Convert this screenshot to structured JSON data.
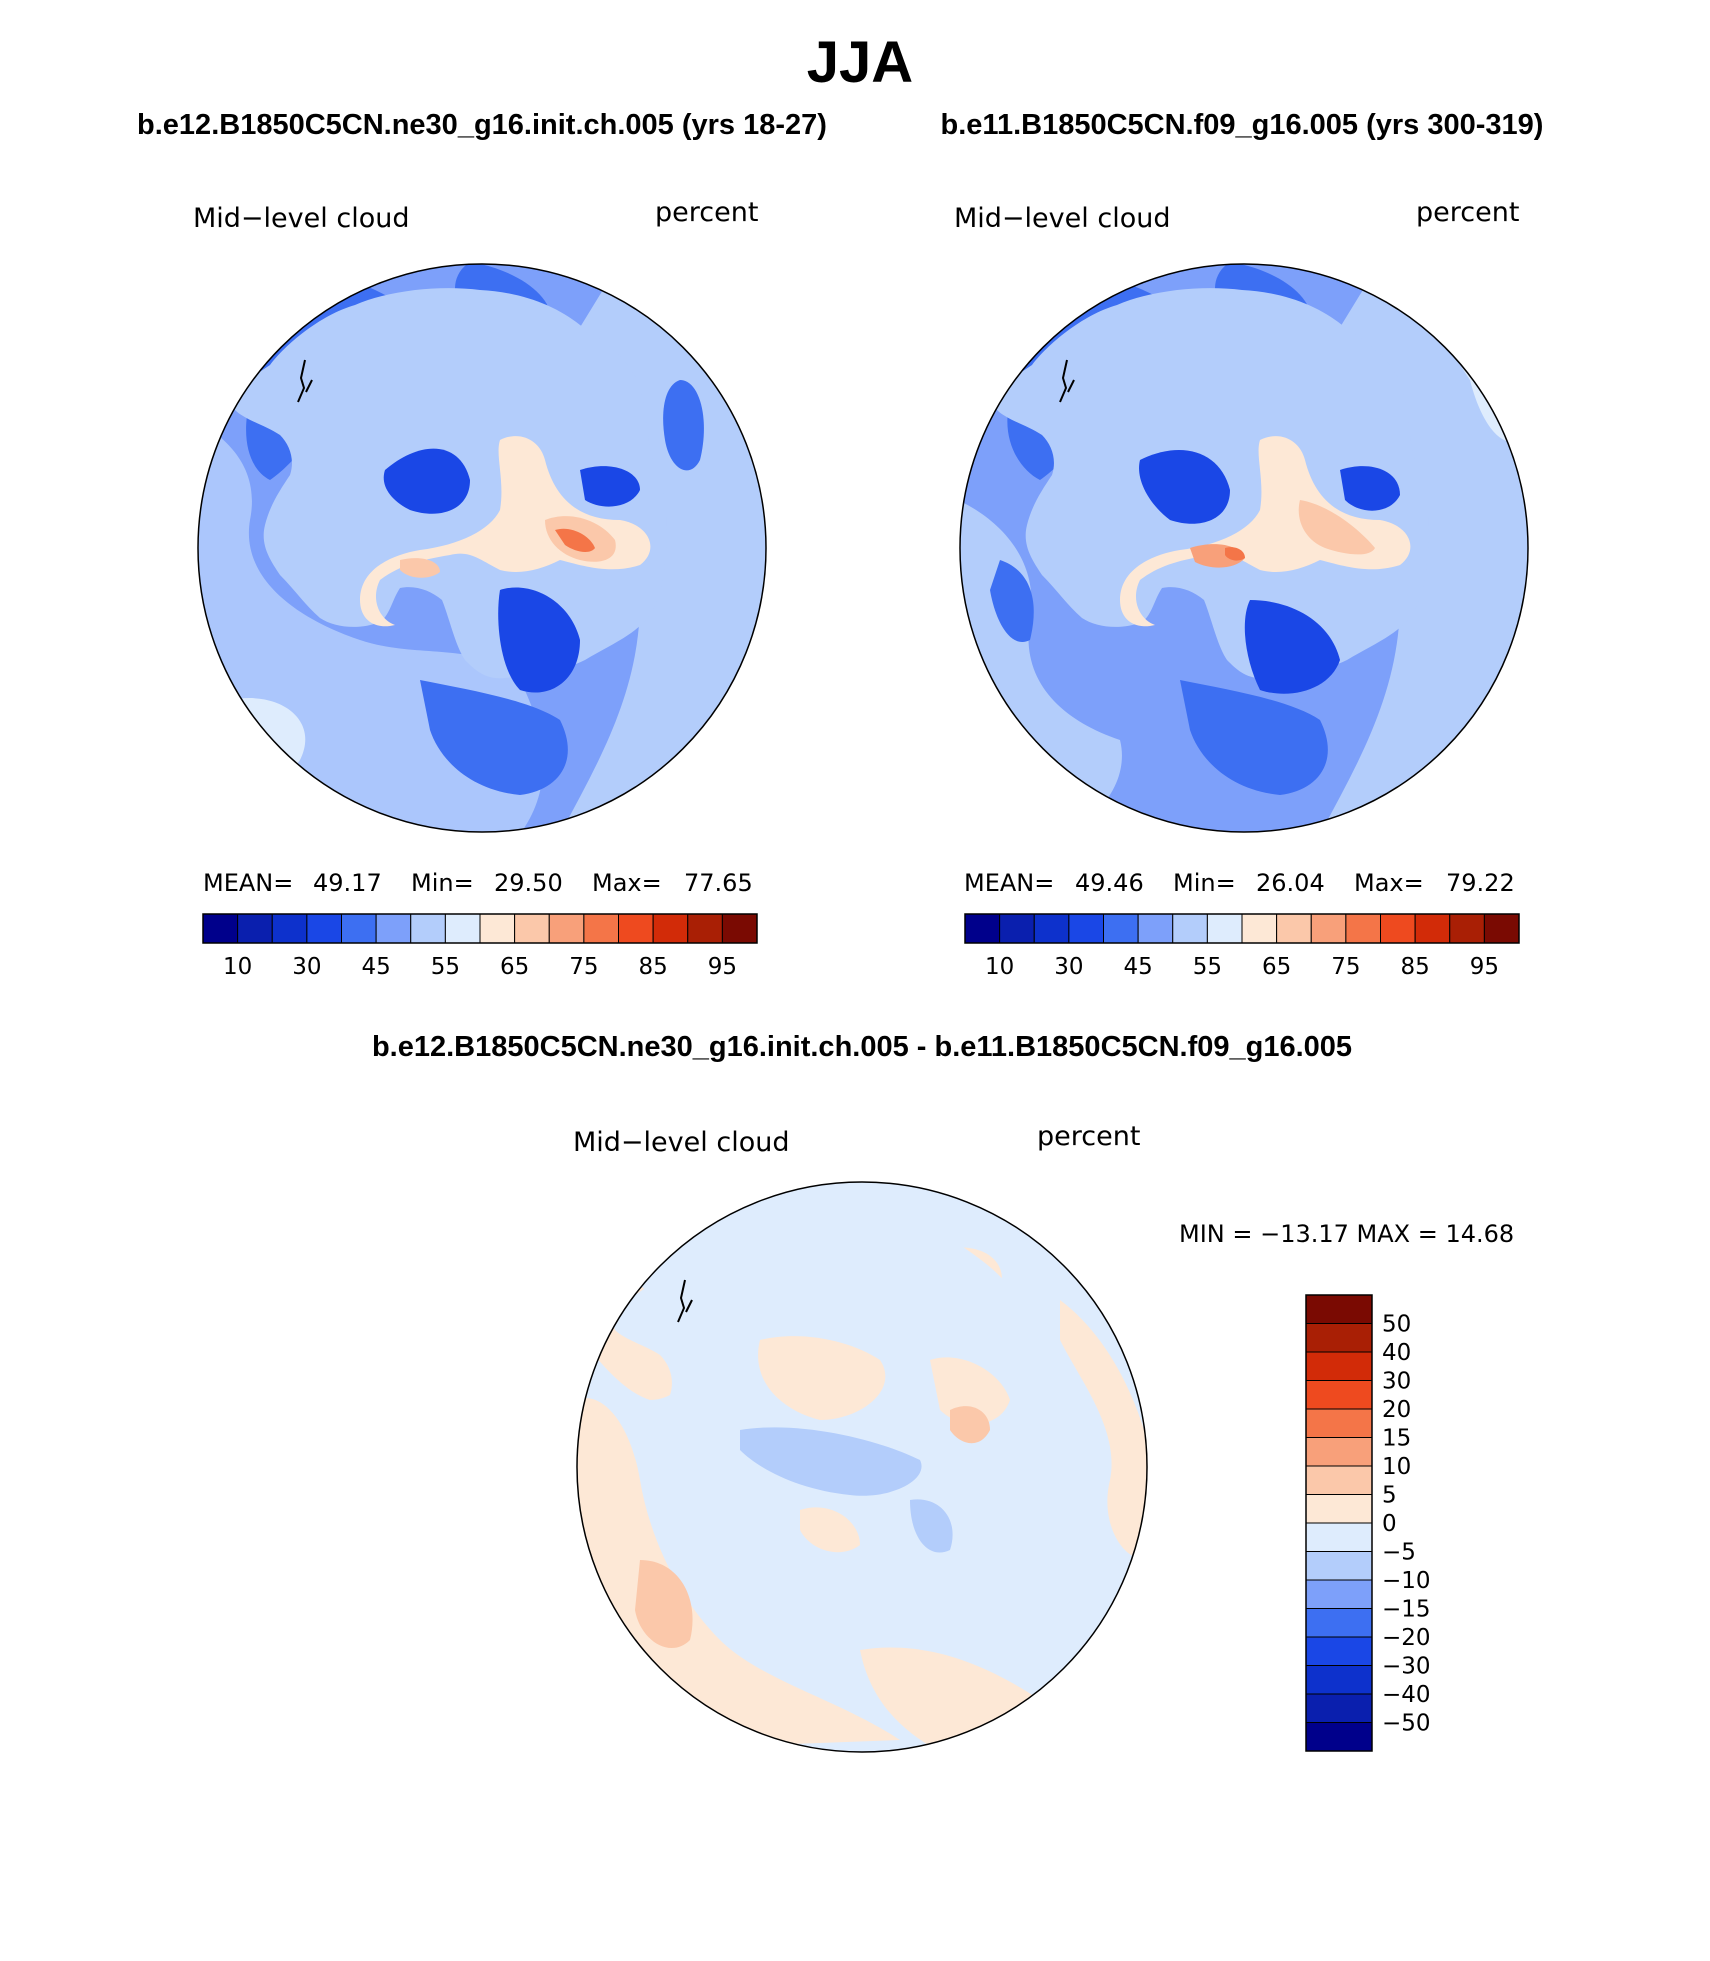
{
  "figure": {
    "title": "JJA",
    "case_a": "b.e12.B1850C5CN.ne30_g16.init.ch.005 (yrs 18-27)",
    "case_b": "b.e11.B1850C5CN.f09_g16.005 (yrs 300-319)",
    "diff_title": "b.e12.B1850C5CN.ne30_g16.init.ch.005 - b.e11.B1850C5CN.f09_g16.005"
  },
  "colors": {
    "abs_scale": [
      "#00008b",
      "#0a1fae",
      "#0d31cc",
      "#1a47e6",
      "#3d6ff2",
      "#7da0fa",
      "#b3cdfb",
      "#deecfd",
      "#fde8d6",
      "#fbc8aa",
      "#f8a07a",
      "#f47548",
      "#ee4a1f",
      "#d22b08",
      "#a91f05",
      "#7a0a02"
    ],
    "diff_scale": [
      "#00008b",
      "#0a1fae",
      "#0d31cc",
      "#1a47e6",
      "#3d6ff2",
      "#7da0fa",
      "#b3cdfb",
      "#deecfd",
      "#fde8d6",
      "#fbc8aa",
      "#f8a07a",
      "#f47548",
      "#ee4a1f",
      "#d22b08",
      "#a91f05",
      "#7a0a02"
    ],
    "coastline": "#000000"
  },
  "chart_data": [
    {
      "type": "heatmap",
      "projection": "polar-stereographic-south",
      "variable_label": "Mid−level cloud",
      "units_label": "percent",
      "stats": {
        "mean_label": "MEAN=",
        "mean": "49.17",
        "min_label": "Min=",
        "min": "29.50",
        "max_label": "Max=",
        "max": "77.65"
      },
      "colorbar": {
        "orientation": "horizontal",
        "tick_labels": [
          "10",
          "30",
          "45",
          "55",
          "65",
          "75",
          "85",
          "95"
        ]
      }
    },
    {
      "type": "heatmap",
      "projection": "polar-stereographic-south",
      "variable_label": "Mid−level cloud",
      "units_label": "percent",
      "stats": {
        "mean_label": "MEAN=",
        "mean": "49.46",
        "min_label": "Min=",
        "min": "26.04",
        "max_label": "Max=",
        "max": "79.22"
      },
      "colorbar": {
        "orientation": "horizontal",
        "tick_labels": [
          "10",
          "30",
          "45",
          "55",
          "65",
          "75",
          "85",
          "95"
        ]
      }
    },
    {
      "type": "heatmap",
      "projection": "polar-stereographic-south",
      "variable_label": "Mid−level cloud",
      "units_label": "percent",
      "minmax_text": "MIN = −13.17 MAX =  14.68",
      "colorbar": {
        "orientation": "vertical",
        "tick_labels": [
          "50",
          "40",
          "30",
          "20",
          "15",
          "10",
          "5",
          "0",
          "−5",
          "−10",
          "−15",
          "−20",
          "−30",
          "−40",
          "−50"
        ]
      }
    }
  ]
}
